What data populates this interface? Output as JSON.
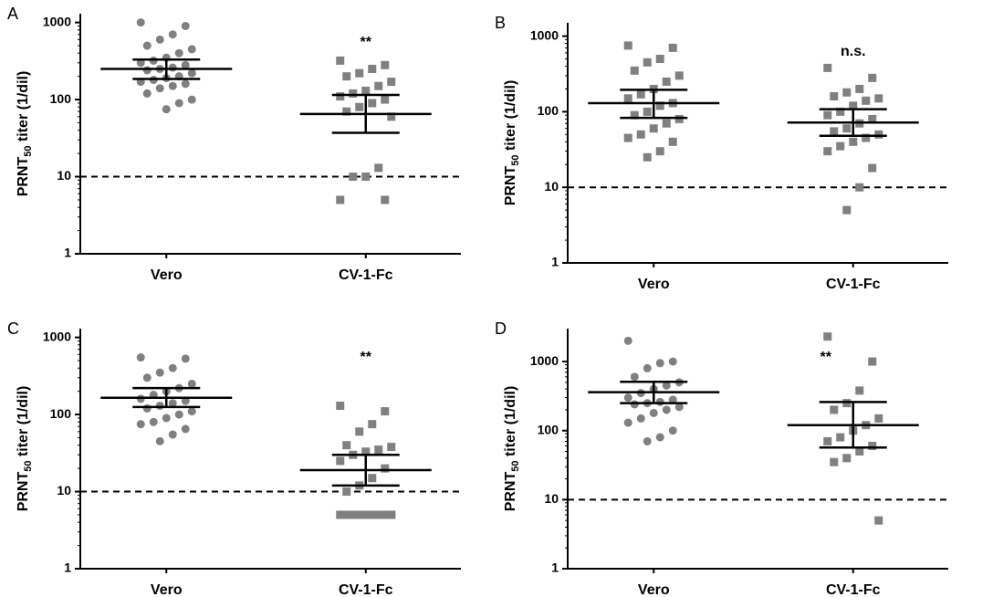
{
  "chart_data": [
    {
      "type": "dot",
      "panel": "A",
      "ylabel": {
        "main": "PRNT",
        "sub": "50",
        "rest": " titer (1/dil)"
      },
      "log_scale": true,
      "categories": [
        "Vero",
        "CV-1-Fc"
      ],
      "ylim": [
        1,
        1300
      ],
      "yticks": [
        1,
        10,
        100,
        1000
      ],
      "threshold": 10,
      "annotation": "**",
      "groups": [
        {
          "marker": "circle",
          "color": "#808080",
          "values": [
            1000,
            900,
            700,
            600,
            500,
            450,
            400,
            350,
            320,
            300,
            280,
            260,
            250,
            240,
            220,
            200,
            190,
            180,
            170,
            160,
            150,
            140,
            120,
            100,
            90,
            75
          ],
          "mean": 250,
          "ci": [
            185,
            330
          ]
        },
        {
          "marker": "square",
          "color": "#808080",
          "values": [
            320,
            280,
            250,
            220,
            200,
            170,
            150,
            130,
            120,
            110,
            100,
            90,
            80,
            70,
            60,
            13,
            10,
            10,
            5,
            5
          ],
          "mean": 65,
          "ci": [
            37,
            115
          ]
        }
      ]
    },
    {
      "type": "dot",
      "panel": "B",
      "ylabel": {
        "main": "PRNT",
        "sub": "50",
        "rest": " titer (1/dil)"
      },
      "log_scale": true,
      "categories": [
        "Vero",
        "CV-1-Fc"
      ],
      "ylim": [
        1,
        1500
      ],
      "yticks": [
        1,
        10,
        100,
        1000
      ],
      "threshold": 10,
      "annotation": "n.s.",
      "groups": [
        {
          "marker": "square",
          "color": "#808080",
          "values": [
            750,
            700,
            500,
            450,
            350,
            300,
            250,
            200,
            170,
            150,
            130,
            120,
            100,
            90,
            80,
            70,
            60,
            50,
            45,
            40,
            30,
            25
          ],
          "mean": 130,
          "ci": [
            83,
            195
          ]
        },
        {
          "marker": "square",
          "color": "#808080",
          "values": [
            380,
            280,
            200,
            180,
            160,
            150,
            140,
            120,
            100,
            90,
            80,
            70,
            60,
            55,
            50,
            45,
            40,
            35,
            30,
            18,
            10,
            5
          ],
          "mean": 72,
          "ci": [
            48,
            108
          ]
        }
      ]
    },
    {
      "type": "dot",
      "panel": "C",
      "ylabel": {
        "main": "PRNT",
        "sub": "50",
        "rest": " titer (1/dil)"
      },
      "log_scale": true,
      "categories": [
        "Vero",
        "CV-1-Fc"
      ],
      "ylim": [
        1,
        1300
      ],
      "yticks": [
        1,
        10,
        100,
        1000
      ],
      "threshold": 10,
      "annotation": "**",
      "groups": [
        {
          "marker": "circle",
          "color": "#808080",
          "values": [
            550,
            530,
            400,
            350,
            300,
            250,
            220,
            200,
            180,
            160,
            150,
            140,
            130,
            120,
            110,
            100,
            90,
            80,
            75,
            65,
            55,
            45
          ],
          "mean": 165,
          "ci": [
            125,
            220
          ]
        },
        {
          "marker": "square",
          "color": "#808080",
          "values": [
            130,
            110,
            75,
            60,
            40,
            38,
            35,
            33,
            30,
            25,
            20,
            15,
            12,
            10,
            5,
            5,
            5,
            5,
            5,
            5,
            5,
            5,
            5,
            5
          ],
          "mean": 19,
          "ci": [
            12,
            30
          ]
        }
      ]
    },
    {
      "type": "dot",
      "panel": "D",
      "ylabel": {
        "main": "PRNT",
        "sub": "50",
        "rest": " titer (1/dil)"
      },
      "log_scale": true,
      "categories": [
        "Vero",
        "CV-1-Fc"
      ],
      "ylim": [
        1,
        3000
      ],
      "yticks": [
        1,
        10,
        100,
        1000
      ],
      "threshold": 10,
      "annotation": "**",
      "groups": [
        {
          "marker": "circle",
          "color": "#808080",
          "values": [
            2000,
            1000,
            950,
            800,
            600,
            500,
            450,
            400,
            350,
            300,
            280,
            260,
            250,
            240,
            220,
            200,
            180,
            150,
            130,
            100,
            80,
            70
          ],
          "mean": 360,
          "ci": [
            250,
            510
          ]
        },
        {
          "marker": "square",
          "color": "#808080",
          "values": [
            2300,
            1000,
            380,
            250,
            200,
            150,
            120,
            100,
            80,
            70,
            60,
            50,
            40,
            35,
            5
          ],
          "mean": 120,
          "ci": [
            57,
            260
          ]
        }
      ]
    }
  ]
}
